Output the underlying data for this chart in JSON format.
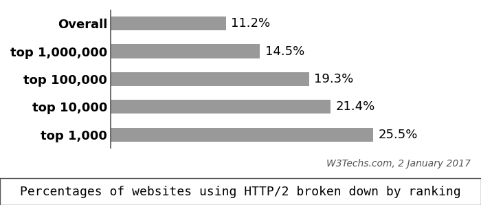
{
  "categories": [
    "Overall",
    "top 1,000,000",
    "top 100,000",
    "top 10,000",
    "top 1,000"
  ],
  "values": [
    11.2,
    14.5,
    19.3,
    21.4,
    25.5
  ],
  "bar_color": "#999999",
  "label_color": "#000000",
  "value_color": "#000000",
  "background_color": "#ffffff",
  "bar_edge_color": "none",
  "source_text": "W3Techs.com, 2 January 2017",
  "caption": "Percentages of websites using HTTP/2 broken down by ranking",
  "xlim": [
    0,
    35
  ],
  "bar_height": 0.5,
  "label_fontsize": 13,
  "value_fontsize": 13,
  "source_fontsize": 10,
  "caption_fontsize": 13
}
